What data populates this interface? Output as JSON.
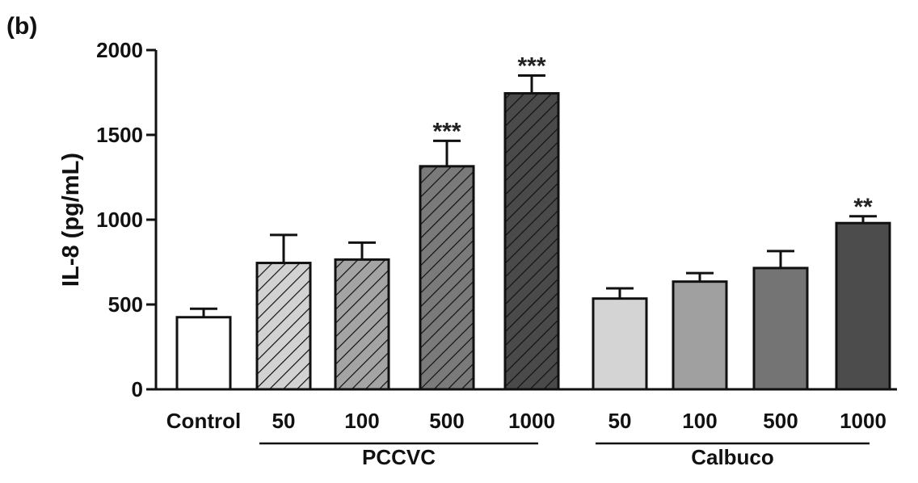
{
  "panel_label": "(b)",
  "chart_data": {
    "type": "bar",
    "title": "",
    "xlabel": "",
    "ylabel": "IL-8 (pg/mL)",
    "ylim": [
      0,
      2000
    ],
    "yticks": [
      "0",
      "500",
      "1000",
      "1500",
      "2000"
    ],
    "grid": false,
    "legend": "none",
    "categories": [
      "Control",
      "50",
      "100",
      "500",
      "1000",
      "50",
      "100",
      "500",
      "1000"
    ],
    "values": [
      425,
      745,
      765,
      1315,
      1745,
      535,
      635,
      715,
      980
    ],
    "errors": [
      50,
      165,
      100,
      150,
      105,
      60,
      50,
      100,
      40
    ],
    "significance": [
      "",
      "",
      "",
      "***",
      "***",
      "",
      "",
      "",
      "**"
    ],
    "fills": [
      "#ffffff",
      "#d2d2d2",
      "#a4a4a4",
      "#7a7a7a",
      "#4a4a4a",
      "#d4d4d4",
      "#a0a0a0",
      "#747474",
      "#4c4c4c"
    ],
    "hatched": [
      false,
      true,
      true,
      true,
      true,
      false,
      false,
      false,
      false
    ],
    "groups": [
      {
        "label": "PCCVC",
        "from": 1,
        "to": 4
      },
      {
        "label": "Calbuco",
        "from": 5,
        "to": 8
      }
    ]
  }
}
